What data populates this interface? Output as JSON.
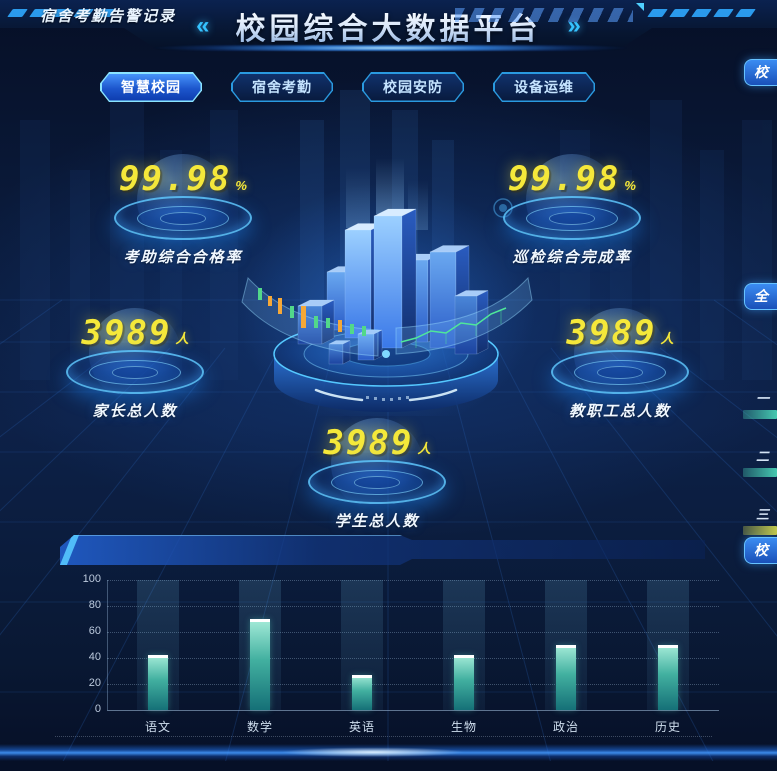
{
  "header": {
    "title": "校园综合大数据平台",
    "left_chevron": "«",
    "right_chevron": "»"
  },
  "tabs": [
    {
      "label": "智慧校园",
      "active": true
    },
    {
      "label": "宿舍考勤",
      "active": false
    },
    {
      "label": "校园安防",
      "active": false
    },
    {
      "label": "设备运维",
      "active": false
    }
  ],
  "stats": [
    {
      "value": "99.98",
      "unit": "%",
      "label": "考助综合合格率"
    },
    {
      "value": "99.98",
      "unit": "%",
      "label": "巡检综合完成率"
    },
    {
      "value": "3989",
      "unit": "人",
      "label": "家长总人数"
    },
    {
      "value": "3989",
      "unit": "人",
      "label": "教职工总人数"
    },
    {
      "value": "3989",
      "unit": "人",
      "label": "学生总人数"
    }
  ],
  "alert_panel": {
    "title": "宿舍考勤告警记录"
  },
  "chart_data": {
    "type": "bar",
    "title": "宿舍考勤告警记录",
    "categories": [
      "语文",
      "数学",
      "英语",
      "生物",
      "政治",
      "历史"
    ],
    "values": [
      42,
      70,
      27,
      42,
      50,
      50
    ],
    "xlabel": "",
    "ylabel": "",
    "ylim": [
      0,
      100
    ],
    "yticks": [
      0,
      20,
      40,
      60,
      80,
      100
    ],
    "grid": "horizontal-dotted",
    "legend": "none",
    "bar_color": "#46b8a8"
  },
  "right_edge": {
    "panel_headers": [
      {
        "partial_label": "校"
      },
      {
        "partial_label": "全"
      },
      {
        "partial_label": "校"
      }
    ],
    "ranking_items": [
      {
        "label": "一",
        "bar_color": "#46c8b0"
      },
      {
        "label": "二",
        "bar_color": "#46c8b0"
      },
      {
        "label": "三",
        "bar_color": "#c0c84e"
      }
    ]
  },
  "colors": {
    "accent_cyan": "#35c8ff",
    "number_yellow": "#f5e83a",
    "bar_teal": "#46b8a8",
    "bg_navy": "#0a1a3a"
  }
}
